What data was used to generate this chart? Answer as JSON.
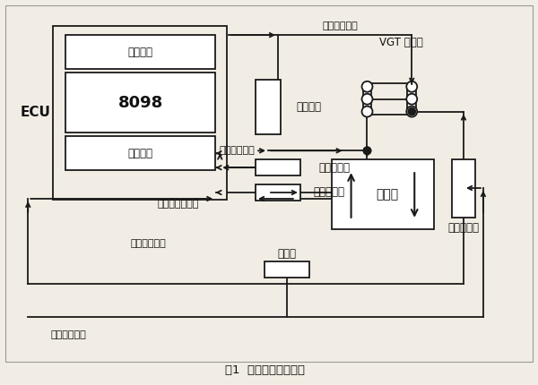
{
  "title": "图1  控制系统总体布置",
  "bg_color": "#f2ede4",
  "line_color": "#1a1a1a",
  "text_color": "#111111",
  "font_size": 8.5,
  "ecu_label": "ECU",
  "chip_label": "8098",
  "output_port": "输出接口",
  "input_port": "输入接口",
  "vgt_label": "VGT 增压器",
  "engine_label": "发动机",
  "torque_motor": "力矩电机",
  "displacement_sensor": "位移传感器",
  "speed_sensor": "转速传感器",
  "pressure_sensor": "压力传感器",
  "potentiometer": "电位器",
  "ctrl_out_signal": "控制输出信号",
  "port_displacement_signal": "喉口位移信号",
  "engine_speed_signal": "发动机转速信号",
  "boost_pressure_signal": "增压压力信号",
  "manual_ctrl_signal": "手动控制信号"
}
